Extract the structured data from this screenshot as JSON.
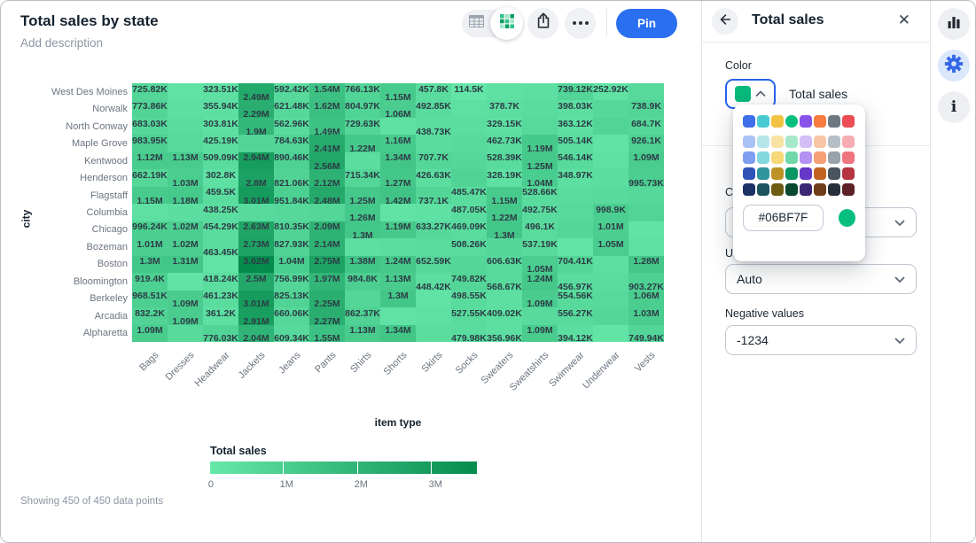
{
  "header": {
    "title": "Total sales by state",
    "description_placeholder": "Add description",
    "pin_label": "Pin"
  },
  "chart_data": {
    "type": "heatmap",
    "title": "Total sales by state",
    "xlabel": "item type",
    "ylabel": "city",
    "x_categories": [
      "Bags",
      "Dresses",
      "Headwear",
      "Jackets",
      "Jeans",
      "Pants",
      "Shirts",
      "Shorts",
      "Skirts",
      "Socks",
      "Sweaters",
      "Sweatshirts",
      "Swimwear",
      "Underwear",
      "Vests"
    ],
    "y_categories": [
      "West Des Moines",
      "Norwalk",
      "North Conway",
      "Maple Grove",
      "Kentwood",
      "Henderson",
      "Flagstaff",
      "Columbia",
      "Chicago",
      "Bozeman",
      "Boston",
      "Bloomington",
      "Berkeley",
      "Arcadia",
      "Alpharetta"
    ],
    "cell_labels": [
      [
        [
          1,
          "725.82K",
          0
        ],
        [
          3,
          "323.51K",
          0
        ],
        [
          4,
          "2.49M",
          1
        ],
        [
          5,
          "592.42K",
          0
        ],
        [
          6,
          "1.54M",
          0
        ],
        [
          7,
          "766.13K",
          0
        ],
        [
          8,
          "1.15M",
          1
        ],
        [
          9,
          "457.8K",
          0
        ],
        [
          10,
          "114.5K",
          0
        ],
        [
          13,
          "739.12K",
          0
        ],
        [
          14,
          "252.92K",
          0
        ]
      ],
      [
        [
          1,
          "773.86K",
          0
        ],
        [
          3,
          "355.94K",
          0
        ],
        [
          4,
          "2.29M",
          1
        ],
        [
          5,
          "621.48K",
          0
        ],
        [
          6,
          "1.62M",
          0
        ],
        [
          7,
          "804.97K",
          0
        ],
        [
          8,
          "1.06M",
          1
        ],
        [
          9,
          "492.85K",
          0
        ],
        [
          11,
          "378.7K",
          0
        ],
        [
          13,
          "398.03K",
          0
        ],
        [
          15,
          "738.9K",
          0
        ]
      ],
      [
        [
          1,
          "683.03K",
          0
        ],
        [
          3,
          "303.81K",
          0
        ],
        [
          4,
          "1.9M",
          1
        ],
        [
          5,
          "562.96K",
          0
        ],
        [
          6,
          "1.49M",
          1
        ],
        [
          7,
          "729.63K",
          0
        ],
        [
          9,
          "438.73K",
          1
        ],
        [
          11,
          "329.15K",
          0
        ],
        [
          13,
          "363.12K",
          0
        ],
        [
          15,
          "684.7K",
          0
        ]
      ],
      [
        [
          1,
          "983.95K",
          0
        ],
        [
          3,
          "425.19K",
          0
        ],
        [
          5,
          "784.63K",
          0
        ],
        [
          6,
          "2.41M",
          1
        ],
        [
          7,
          "1.22M",
          1
        ],
        [
          8,
          "1.16M",
          0
        ],
        [
          11,
          "462.73K",
          0
        ],
        [
          12,
          "1.19M",
          1
        ],
        [
          13,
          "505.14K",
          0
        ],
        [
          15,
          "926.1K",
          0
        ]
      ],
      [
        [
          1,
          "1.12M",
          0
        ],
        [
          2,
          "1.13M",
          0
        ],
        [
          3,
          "509.09K",
          0
        ],
        [
          4,
          "2.94M",
          0
        ],
        [
          5,
          "890.46K",
          0
        ],
        [
          6,
          "2.56M",
          1
        ],
        [
          8,
          "1.34M",
          0
        ],
        [
          9,
          "707.7K",
          0
        ],
        [
          11,
          "528.39K",
          0
        ],
        [
          12,
          "1.25M",
          1
        ],
        [
          13,
          "546.14K",
          0
        ],
        [
          15,
          "1.09M",
          0
        ]
      ],
      [
        [
          1,
          "662.19K",
          0
        ],
        [
          2,
          "1.03M",
          1
        ],
        [
          3,
          "302.8K",
          0
        ],
        [
          4,
          "2.8M",
          1
        ],
        [
          5,
          "821.06K",
          1
        ],
        [
          6,
          "2.12M",
          1
        ],
        [
          7,
          "715.34K",
          0
        ],
        [
          8,
          "1.27M",
          1
        ],
        [
          9,
          "426.63K",
          0
        ],
        [
          11,
          "328.19K",
          0
        ],
        [
          12,
          "1.04M",
          1
        ],
        [
          13,
          "348.97K",
          0
        ],
        [
          15,
          "995.73K",
          1
        ]
      ],
      [
        [
          1,
          "1.15M",
          1
        ],
        [
          2,
          "1.18M",
          1
        ],
        [
          3,
          "459.5K",
          0
        ],
        [
          4,
          "3.01M",
          1
        ],
        [
          5,
          "951.84K",
          1
        ],
        [
          6,
          "2.48M",
          1
        ],
        [
          7,
          "1.25M",
          1
        ],
        [
          8,
          "1.42M",
          1
        ],
        [
          9,
          "737.1K",
          1
        ],
        [
          10,
          "485.47K",
          0
        ],
        [
          11,
          "1.15M",
          1
        ],
        [
          12,
          "528.66K",
          0
        ]
      ],
      [
        [
          3,
          "438.25K",
          0
        ],
        [
          7,
          "1.26M",
          1
        ],
        [
          10,
          "487.05K",
          0
        ],
        [
          11,
          "1.22M",
          1
        ],
        [
          12,
          "492.75K",
          0
        ],
        [
          14,
          "998.9K",
          0
        ]
      ],
      [
        [
          1,
          "996.24K",
          0
        ],
        [
          2,
          "1.02M",
          0
        ],
        [
          3,
          "454.29K",
          0
        ],
        [
          4,
          "2.63M",
          0
        ],
        [
          5,
          "810.35K",
          0
        ],
        [
          6,
          "2.09M",
          0
        ],
        [
          7,
          "1.3M",
          1
        ],
        [
          8,
          "1.19M",
          0
        ],
        [
          9,
          "633.27K",
          0
        ],
        [
          10,
          "469.09K",
          0
        ],
        [
          11,
          "1.3M",
          1
        ],
        [
          12,
          "496.1K",
          0
        ],
        [
          14,
          "1.01M",
          0
        ]
      ],
      [
        [
          1,
          "1.01M",
          0
        ],
        [
          2,
          "1.02M",
          0
        ],
        [
          3,
          "463.45K",
          1
        ],
        [
          4,
          "2.73M",
          0
        ],
        [
          5,
          "827.93K",
          0
        ],
        [
          6,
          "2.14M",
          0
        ],
        [
          10,
          "508.26K",
          0
        ],
        [
          12,
          "537.19K",
          0
        ],
        [
          14,
          "1.05M",
          0
        ]
      ],
      [
        [
          1,
          "1.3M",
          0
        ],
        [
          2,
          "1.31M",
          0
        ],
        [
          4,
          "3.62M",
          0
        ],
        [
          5,
          "1.04M",
          0
        ],
        [
          6,
          "2.75M",
          0
        ],
        [
          7,
          "1.38M",
          0
        ],
        [
          8,
          "1.24M",
          0
        ],
        [
          9,
          "652.59K",
          0
        ],
        [
          11,
          "606.63K",
          0
        ],
        [
          12,
          "1.05M",
          1
        ],
        [
          13,
          "704.41K",
          0
        ],
        [
          15,
          "1.28M",
          0
        ]
      ],
      [
        [
          1,
          "919.4K",
          0
        ],
        [
          3,
          "418.24K",
          0
        ],
        [
          4,
          "2.5M",
          0
        ],
        [
          5,
          "756.99K",
          0
        ],
        [
          6,
          "1.97M",
          0
        ],
        [
          7,
          "984.8K",
          0
        ],
        [
          8,
          "1.13M",
          0
        ],
        [
          9,
          "448.42K",
          1
        ],
        [
          10,
          "749.82K",
          0
        ],
        [
          11,
          "568.67K",
          1
        ],
        [
          12,
          "1.24M",
          0
        ],
        [
          13,
          "456.97K",
          1
        ],
        [
          15,
          "903.27K",
          1
        ]
      ],
      [
        [
          1,
          "968.51K",
          0
        ],
        [
          2,
          "1.09M",
          1
        ],
        [
          3,
          "461.23K",
          0
        ],
        [
          4,
          "3.01M",
          1
        ],
        [
          5,
          "825.13K",
          0
        ],
        [
          6,
          "2.25M",
          1
        ],
        [
          8,
          "1.3M",
          0
        ],
        [
          10,
          "498.55K",
          0
        ],
        [
          12,
          "1.09M",
          1
        ],
        [
          13,
          "554.56K",
          0
        ],
        [
          15,
          "1.06M",
          0
        ]
      ],
      [
        [
          1,
          "832.2K",
          0
        ],
        [
          2,
          "1.09M",
          1
        ],
        [
          3,
          "361.2K",
          0
        ],
        [
          4,
          "2.91M",
          1
        ],
        [
          5,
          "660.06K",
          0
        ],
        [
          6,
          "2.27M",
          1
        ],
        [
          7,
          "862.37K",
          0
        ],
        [
          10,
          "527.55K",
          0
        ],
        [
          11,
          "409.02K",
          0
        ],
        [
          13,
          "556.27K",
          0
        ],
        [
          15,
          "1.03M",
          0
        ]
      ],
      [
        [
          1,
          "1.09M",
          0
        ],
        [
          3,
          "776.03K",
          1
        ],
        [
          4,
          "2.04M",
          1
        ],
        [
          5,
          "609.34K",
          1
        ],
        [
          6,
          "1.55M",
          1
        ],
        [
          7,
          "1.13M",
          0
        ],
        [
          8,
          "1.34M",
          0
        ],
        [
          10,
          "479.98K",
          1
        ],
        [
          11,
          "356.96K",
          1
        ],
        [
          12,
          "1.09M",
          0
        ],
        [
          13,
          "394.12K",
          1
        ],
        [
          15,
          "749.94K",
          1
        ]
      ]
    ],
    "legend": {
      "title": "Total sales",
      "ticks": [
        "0",
        "1M",
        "2M",
        "3M"
      ],
      "stops": [
        "#66E8AA",
        "#4BCF90",
        "#30B577",
        "#159C5D",
        "#058C4D"
      ],
      "segment_widths": [
        83,
        83,
        83,
        51
      ]
    },
    "scale": {
      "min_value": 0,
      "max_value": 3620000
    },
    "footer": "Showing 450 of 450 data points"
  },
  "panel": {
    "title": "Total sales",
    "color_label": "Color",
    "swatch_color": "#07B97B",
    "swatch_field": "Total sales",
    "scale_label": "Color scale",
    "units_label": "Units",
    "units_value": "Auto",
    "negative_label": "Negative values",
    "negative_value": "-1234",
    "popover": {
      "hex_value": "#06BF7F",
      "selected": [
        0,
        3
      ],
      "palette": [
        [
          "#3E6FE8",
          "#48CCD2",
          "#F2C242",
          "#06BF7F",
          "#8952E8",
          "#F87B3F",
          "#6E7880",
          "#EB4D52"
        ],
        [
          "#A9C2F5",
          "#B5E6EA",
          "#F8E3A4",
          "#A5E8CA",
          "#D4BEF8",
          "#F9C5A7",
          "#B6BEC6",
          "#F6ADB2"
        ],
        [
          "#7E9EF0",
          "#83D8DD",
          "#F6D878",
          "#6FD8A8",
          "#B491F3",
          "#F79F76",
          "#98A2AB",
          "#F0747E"
        ],
        [
          "#2D52B8",
          "#2F949B",
          "#BD9226",
          "#089663",
          "#6638C8",
          "#C26323",
          "#49545F",
          "#B63440"
        ],
        [
          "#1C3266",
          "#1C545E",
          "#6C5C14",
          "#07492F",
          "#3A2773",
          "#6F3D17",
          "#252F3A",
          "#5C2026"
        ]
      ]
    }
  },
  "colors": {
    "accent_blue": "#2B6FF1",
    "heat_low": "#66E8AA",
    "heat_high": "#058C4D"
  }
}
